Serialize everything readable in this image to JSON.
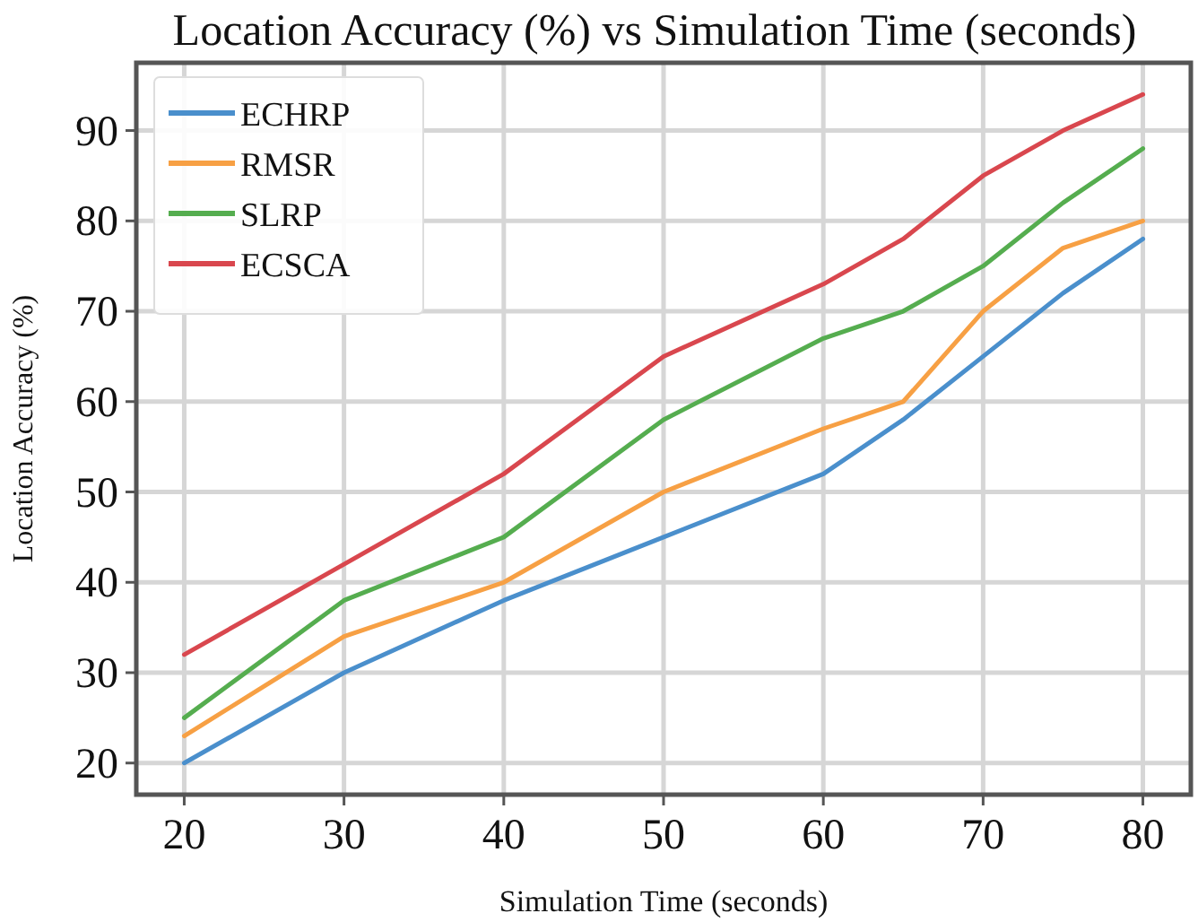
{
  "chart_data": {
    "type": "line",
    "title": "Location Accuracy (%) vs Simulation Time (seconds)",
    "xlabel": "Simulation Time (seconds)",
    "ylabel": "Location Accuracy (%)",
    "x": [
      20,
      30,
      40,
      50,
      60,
      65,
      70,
      75,
      80
    ],
    "series": [
      {
        "name": "ECHRP",
        "color": "#4a8fcc",
        "values": [
          20,
          30,
          38,
          45,
          52,
          58,
          65,
          72,
          78
        ]
      },
      {
        "name": "RMSR",
        "color": "#f7a044",
        "values": [
          23,
          34,
          40,
          50,
          57,
          60,
          70,
          77,
          80
        ]
      },
      {
        "name": "SLRP",
        "color": "#55ad4f",
        "values": [
          25,
          38,
          45,
          58,
          67,
          70,
          75,
          82,
          88
        ]
      },
      {
        "name": "ECSCA",
        "color": "#d9474e",
        "values": [
          32,
          42,
          52,
          65,
          73,
          78,
          85,
          90,
          94
        ]
      }
    ],
    "xlim": [
      17,
      83
    ],
    "xticks": [
      20,
      30,
      40,
      50,
      60,
      70,
      80
    ],
    "ylim": [
      16.5,
      97.5
    ],
    "yticks": [
      20,
      30,
      40,
      50,
      60,
      70,
      80,
      90
    ],
    "grid": true,
    "legend": "top left",
    "line_style": "solid",
    "marker": "none"
  }
}
